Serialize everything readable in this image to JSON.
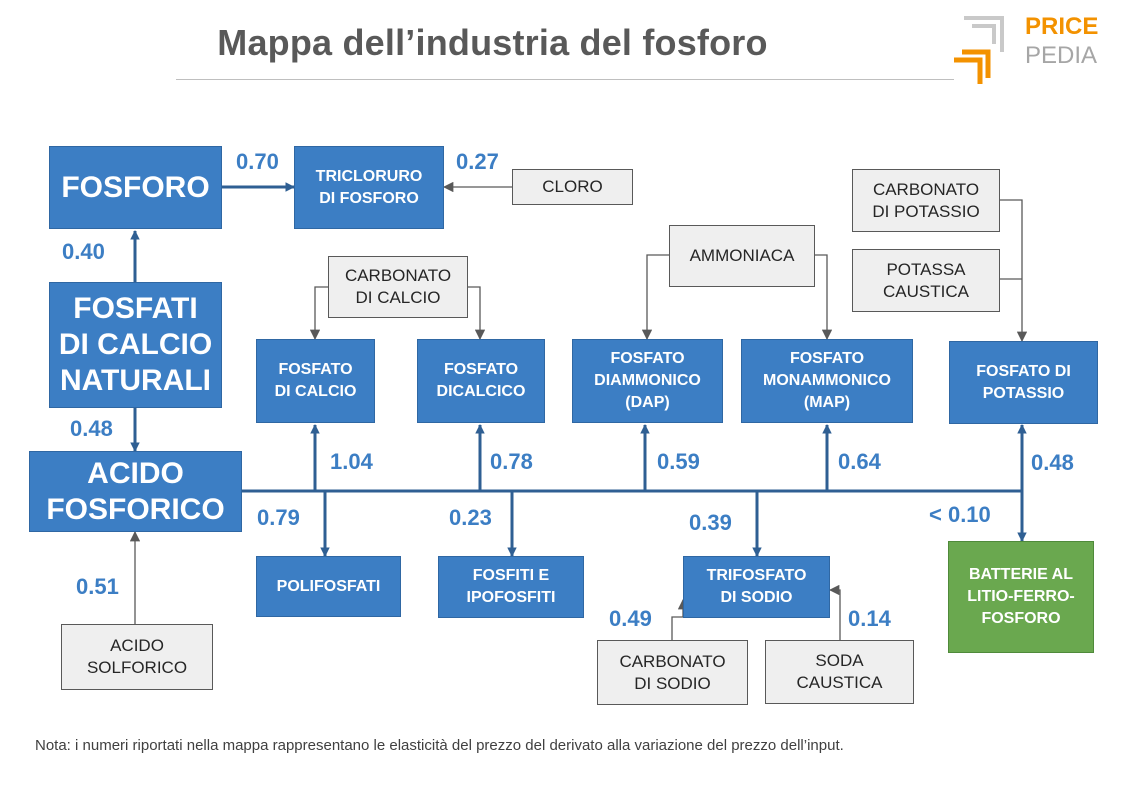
{
  "title": "Mappa dell’industria del fosforo",
  "logo": {
    "line1": "PRICE",
    "line2": "PEDIA",
    "color_orange": "#f39200",
    "color_gray": "#a6a6a6"
  },
  "colors": {
    "main_box": "#3c7ec4",
    "input_box": "#efefef",
    "highlight_box": "#6aa84f",
    "label": "#3c7ec4"
  },
  "nodes": {
    "fosforo": "FOSFORO",
    "fosfati_calcio_naturali": "FOSFATI\nDI CALCIO\nNATURALI",
    "acido_fosforico": "ACIDO\nFOSFORICO",
    "tricloruro_fosforo": "TRICLORURO\nDI FOSFORO",
    "cloro": "CLORO",
    "carbonato_calcio": "CARBONATO\nDI CALCIO",
    "fosfato_calcio": "FOSFATO\nDI CALCIO",
    "fosfato_dicalcico": "FOSFATO\nDICALCICO",
    "ammoniaca": "AMMONIACA",
    "fosfato_diammonico": "FOSFATO\nDIAMMONICO\n(DAP)",
    "fosfato_monammonico": "FOSFATO\nMONAMMONICO\n(MAP)",
    "carbonato_potassio": "CARBONATO\nDI POTASSIO",
    "potassa_caustica": "POTASSA\nCAUSTICA",
    "fosfato_potassio": "FOSFATO DI\nPOTASSIO",
    "acido_solforico": "ACIDO\nSOLFORICO",
    "polifosfati": "POLIFOSFATI",
    "fosfiti_ipofosfiti": "FOSFITI E\nIPOFOSFITI",
    "trifosfato_sodio": "TRIFOSFATO\nDI SODIO",
    "carbonato_sodio": "CARBONATO\nDI SODIO",
    "soda_caustica": "SODA\nCAUSTICA",
    "batterie": "BATTERIE AL\nLITIO-FERRO-\nFOSFORO"
  },
  "elasticities": {
    "fosfati_to_fosforo": "0.40",
    "fosforo_to_tricloruro": "0.70",
    "cloro_to_tricloruro": "0.27",
    "fosfati_to_acido": "0.48",
    "solforico_to_acido": "0.51",
    "acido_to_fosfato_calcio": "1.04",
    "acido_to_dicalcico": "0.78",
    "acido_to_dap": "0.59",
    "acido_to_map": "0.64",
    "acido_to_fosfato_potassio": "0.48",
    "acido_to_polifosfati": "0.79",
    "acido_to_fosfiti": "0.23",
    "acido_to_trifosfato": "0.39",
    "acido_to_batterie": "< 0.10",
    "carbonato_sodio_to_trifosfato": "0.49",
    "soda_to_trifosfato": "0.14"
  },
  "note": "Nota: i numeri riportati nella mappa rappresentano le elasticità del prezzo del derivato alla variazione del prezzo dell’input."
}
